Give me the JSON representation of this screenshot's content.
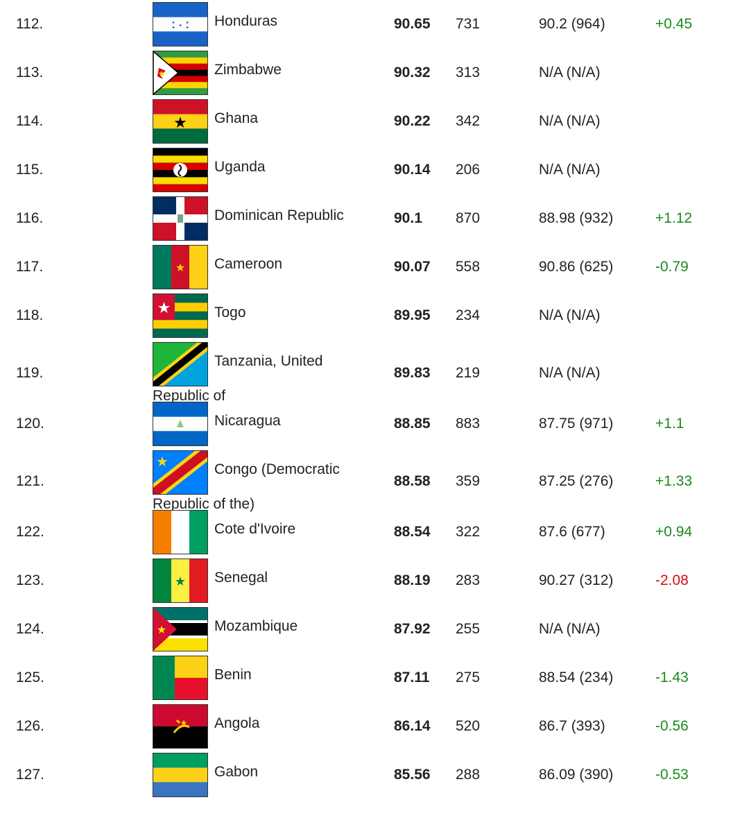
{
  "rows": [
    {
      "rank": "112.",
      "flag": "honduras",
      "name": "Honduras",
      "name2": "",
      "score": "90.65",
      "count": "731",
      "prev": "90.2 (964)",
      "change": "+0.45",
      "trend": "pos"
    },
    {
      "rank": "113.",
      "flag": "zimbabwe",
      "name": "Zimbabwe",
      "name2": "",
      "score": "90.32",
      "count": "313",
      "prev": "N/A (N/A)",
      "change": "",
      "trend": ""
    },
    {
      "rank": "114.",
      "flag": "ghana",
      "name": "Ghana",
      "name2": "",
      "score": "90.22",
      "count": "342",
      "prev": "N/A (N/A)",
      "change": "",
      "trend": ""
    },
    {
      "rank": "115.",
      "flag": "uganda",
      "name": "Uganda",
      "name2": "",
      "score": "90.14",
      "count": "206",
      "prev": "N/A (N/A)",
      "change": "",
      "trend": ""
    },
    {
      "rank": "116.",
      "flag": "dominican-republic",
      "name": "Dominican Republic",
      "name2": "",
      "score": "90.1",
      "count": "870",
      "prev": "88.98 (932)",
      "change": "+1.12",
      "trend": "pos"
    },
    {
      "rank": "117.",
      "flag": "cameroon",
      "name": "Cameroon",
      "name2": "",
      "score": "90.07",
      "count": "558",
      "prev": "90.86 (625)",
      "change": "-0.79",
      "trend": "pos"
    },
    {
      "rank": "118.",
      "flag": "togo",
      "name": "Togo",
      "name2": "",
      "score": "89.95",
      "count": "234",
      "prev": "N/A (N/A)",
      "change": "",
      "trend": ""
    },
    {
      "rank": "119.",
      "flag": "tanzania",
      "name": "Tanzania, United",
      "name2": "Republic of",
      "score": "89.83",
      "count": "219",
      "prev": "N/A (N/A)",
      "change": "",
      "trend": ""
    },
    {
      "rank": "120.",
      "flag": "nicaragua",
      "name": "Nicaragua",
      "name2": "",
      "score": "88.85",
      "count": "883",
      "prev": "87.75 (971)",
      "change": "+1.1",
      "trend": "pos"
    },
    {
      "rank": "121.",
      "flag": "congo-dr",
      "name": "Congo (Democratic",
      "name2": "Republic of the)",
      "score": "88.58",
      "count": "359",
      "prev": "87.25 (276)",
      "change": "+1.33",
      "trend": "pos"
    },
    {
      "rank": "122.",
      "flag": "cote-divoire",
      "name": "Cote d'Ivoire",
      "name2": "",
      "score": "88.54",
      "count": "322",
      "prev": "87.6 (677)",
      "change": "+0.94",
      "trend": "pos"
    },
    {
      "rank": "123.",
      "flag": "senegal",
      "name": "Senegal",
      "name2": "",
      "score": "88.19",
      "count": "283",
      "prev": "90.27 (312)",
      "change": "-2.08",
      "trend": "neg"
    },
    {
      "rank": "124.",
      "flag": "mozambique",
      "name": "Mozambique",
      "name2": "",
      "score": "87.92",
      "count": "255",
      "prev": "N/A (N/A)",
      "change": "",
      "trend": ""
    },
    {
      "rank": "125.",
      "flag": "benin",
      "name": "Benin",
      "name2": "",
      "score": "87.11",
      "count": "275",
      "prev": "88.54 (234)",
      "change": "-1.43",
      "trend": "pos"
    },
    {
      "rank": "126.",
      "flag": "angola",
      "name": "Angola",
      "name2": "",
      "score": "86.14",
      "count": "520",
      "prev": "86.7 (393)",
      "change": "-0.56",
      "trend": "pos"
    },
    {
      "rank": "127.",
      "flag": "gabon",
      "name": "Gabon",
      "name2": "",
      "score": "85.56",
      "count": "288",
      "prev": "86.09 (390)",
      "change": "-0.53",
      "trend": "pos"
    }
  ],
  "colors": {
    "positive": "#1a8a1a",
    "negative": "#d01010"
  }
}
